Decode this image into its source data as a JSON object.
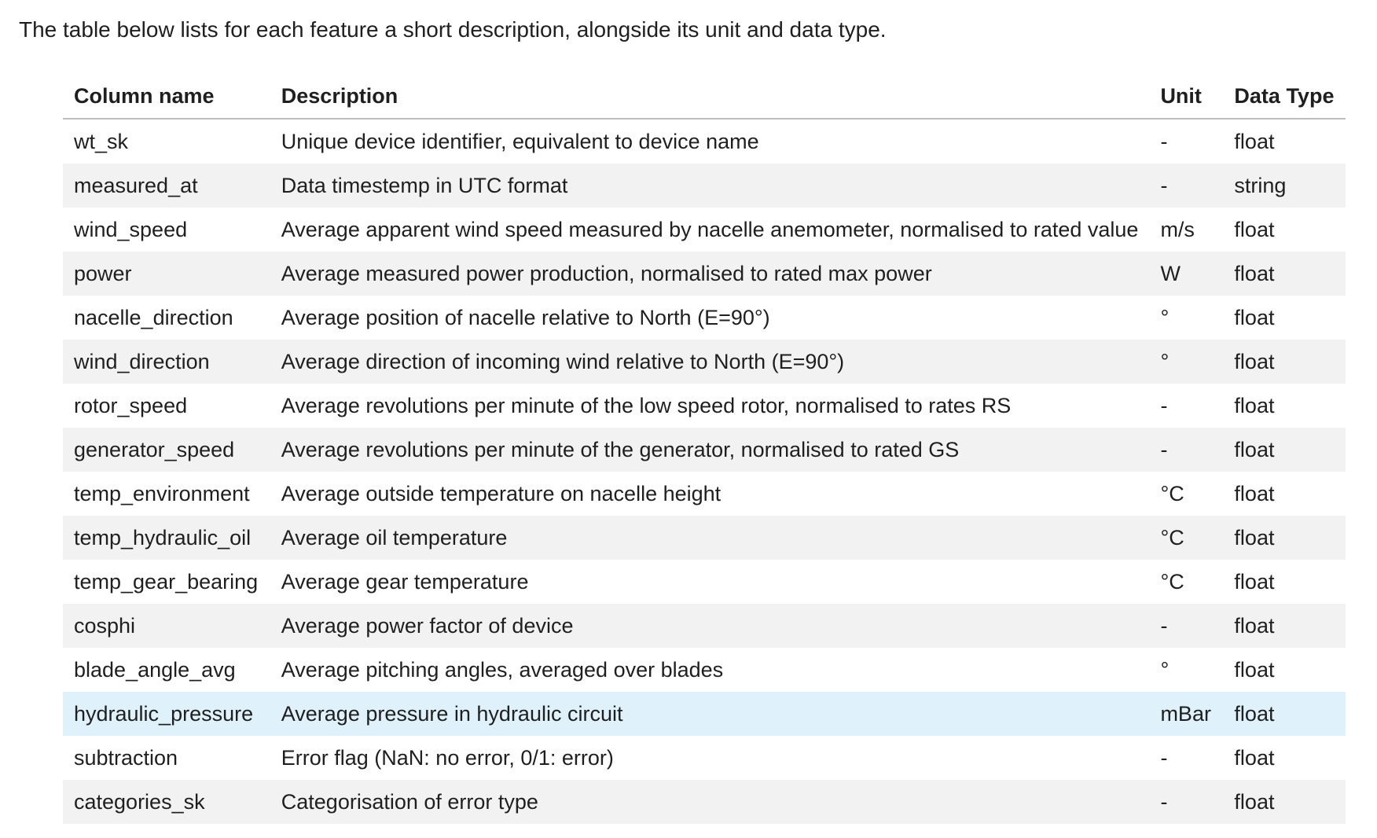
{
  "intro": "The table below lists for each feature a short description, alongside its unit and data type.",
  "table": {
    "headers": {
      "column_name": "Column name",
      "description": "Description",
      "unit": "Unit",
      "data_type": "Data Type"
    },
    "highlighted_row": "hydraulic_pressure",
    "highlight_color": "#dff1fb",
    "stripe_color": "#f2f2f2",
    "rows": [
      {
        "name": "wt_sk",
        "description": "Unique device identifier, equivalent to device name",
        "unit": "-",
        "type": "float"
      },
      {
        "name": "measured_at",
        "description": "Data timestemp in UTC format",
        "unit": "-",
        "type": "string"
      },
      {
        "name": "wind_speed",
        "description": "Average apparent wind speed measured by nacelle anemometer, normalised to rated value",
        "unit": "m/s",
        "type": "float"
      },
      {
        "name": "power",
        "description": "Average measured power production, normalised to rated max power",
        "unit": "W",
        "type": "float"
      },
      {
        "name": "nacelle_direction",
        "description": "Average position of nacelle relative to North (E=90°)",
        "unit": "°",
        "type": "float"
      },
      {
        "name": "wind_direction",
        "description": "Average direction of incoming wind relative to North (E=90°)",
        "unit": "°",
        "type": "float"
      },
      {
        "name": "rotor_speed",
        "description": "Average revolutions per minute of the low speed rotor, normalised to rates RS",
        "unit": "-",
        "type": "float"
      },
      {
        "name": "generator_speed",
        "description": "Average revolutions per minute of the generator, normalised to rated GS",
        "unit": "-",
        "type": "float"
      },
      {
        "name": "temp_environment",
        "description": "Average outside temperature on nacelle height",
        "unit": "°C",
        "type": "float"
      },
      {
        "name": "temp_hydraulic_oil",
        "description": "Average oil temperature",
        "unit": "°C",
        "type": "float"
      },
      {
        "name": "temp_gear_bearing",
        "description": "Average gear temperature",
        "unit": "°C",
        "type": "float"
      },
      {
        "name": "cosphi",
        "description": "Average power factor of device",
        "unit": "-",
        "type": "float"
      },
      {
        "name": "blade_angle_avg",
        "description": "Average pitching angles, averaged over blades",
        "unit": "°",
        "type": "float"
      },
      {
        "name": "hydraulic_pressure",
        "description": "Average pressure in hydraulic circuit",
        "unit": "mBar",
        "type": "float"
      },
      {
        "name": "subtraction",
        "description": "Error flag (NaN: no error, 0/1: error)",
        "unit": "-",
        "type": "float"
      },
      {
        "name": "categories_sk",
        "description": "Categorisation of error type",
        "unit": "-",
        "type": "float"
      }
    ]
  }
}
